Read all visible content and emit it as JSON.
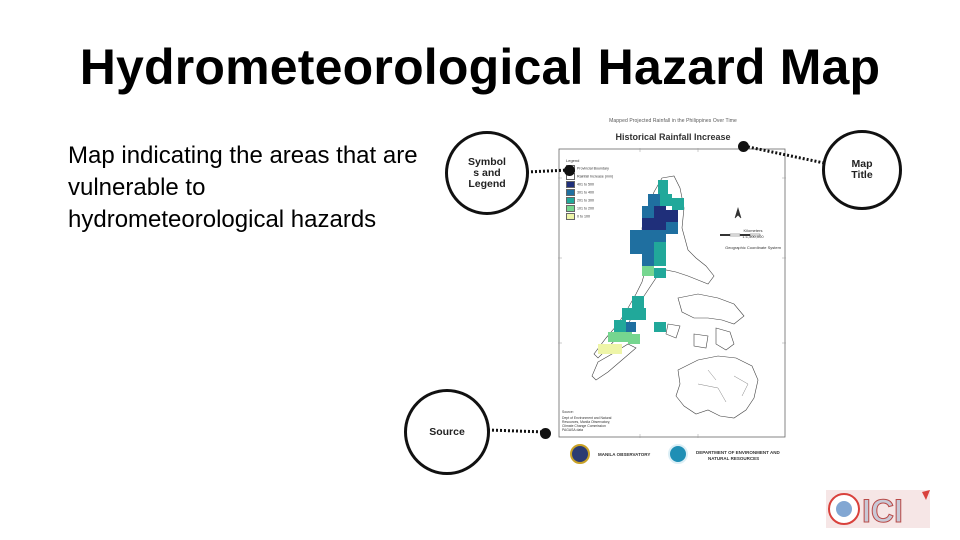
{
  "slide": {
    "title": "Hydrometeorological Hazard Map",
    "body": "Map indicating the areas that are vulnerable to hydrometeorological hazards"
  },
  "map": {
    "header": "Mapped Projected Rainfall in the Philippines Over Time",
    "title": "Historical Rainfall Increase",
    "legend_title": "Legend",
    "legend_items": [
      {
        "label": "Provincial Boundary",
        "color": "#ffffff"
      },
      {
        "label": "Rainfall Increase (mm)",
        "color": "#ffffff"
      },
      {
        "label": "401 to 500",
        "color": "#1f2f7a"
      },
      {
        "label": "301 to 400",
        "color": "#1f6fa0"
      },
      {
        "label": "201 to 300",
        "color": "#21a89a"
      },
      {
        "label": "101 to 200",
        "color": "#76d68f"
      },
      {
        "label": "0 to 100",
        "color": "#eef5a8"
      }
    ],
    "scale_label": "Kilometers",
    "scale_ratio": "1:1,500,000",
    "projection": "Geographic Coordinate System",
    "source_title": "Source:",
    "source_lines": [
      "Dept of Environment and Natural",
      "Resources, Manila Observatory,",
      "Climate Change Commission",
      "PAGASA data"
    ],
    "footer_left": "MANILA OBSERVATORY",
    "footer_right_1": "DEPARTMENT OF ENVIRONMENT AND",
    "footer_right_2": "NATURAL RESOURCES"
  },
  "callouts": {
    "legend": "Symbol s and Legend",
    "title": "Map Title",
    "source": "Source"
  },
  "colors": {
    "darkest": "#1f2f7a",
    "dark": "#1f6fa0",
    "mid": "#21a89a",
    "light": "#76d68f",
    "lightest": "#eef5a8",
    "callout_border": "#111111",
    "logo_red": "#d9413c",
    "logo_blue": "#2f6db5"
  },
  "logo_text": "ICI"
}
